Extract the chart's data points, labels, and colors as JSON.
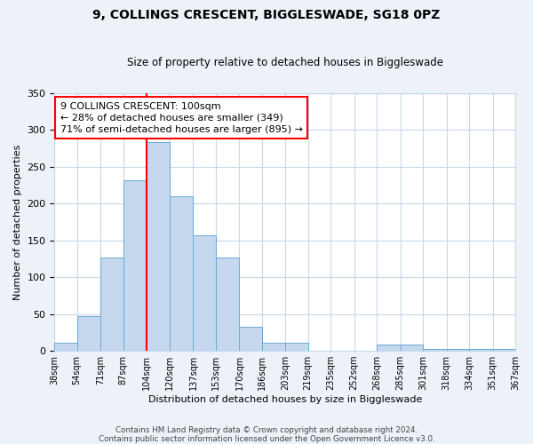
{
  "title": "9, COLLINGS CRESCENT, BIGGLESWADE, SG18 0PZ",
  "subtitle": "Size of property relative to detached houses in Biggleswade",
  "xlabel": "Distribution of detached houses by size in Biggleswade",
  "ylabel": "Number of detached properties",
  "bar_edges": [
    38,
    54,
    71,
    87,
    104,
    120,
    137,
    153,
    170,
    186,
    203,
    219,
    235,
    252,
    268,
    285,
    301,
    318,
    334,
    351,
    367
  ],
  "bar_heights": [
    11,
    47,
    126,
    231,
    283,
    210,
    157,
    126,
    33,
    11,
    11,
    0,
    0,
    0,
    8,
    8,
    3,
    3,
    3,
    3
  ],
  "bar_color": "#c5d8ee",
  "bar_edge_color": "#6aaad4",
  "tick_labels": [
    "38sqm",
    "54sqm",
    "71sqm",
    "87sqm",
    "104sqm",
    "120sqm",
    "137sqm",
    "153sqm",
    "170sqm",
    "186sqm",
    "203sqm",
    "219sqm",
    "235sqm",
    "252sqm",
    "268sqm",
    "285sqm",
    "301sqm",
    "318sqm",
    "334sqm",
    "351sqm",
    "367sqm"
  ],
  "vline_x": 104,
  "vline_color": "red",
  "ylim": [
    0,
    350
  ],
  "yticks": [
    0,
    50,
    100,
    150,
    200,
    250,
    300,
    350
  ],
  "annotation_title": "9 COLLINGS CRESCENT: 100sqm",
  "annotation_line1": "← 28% of detached houses are smaller (349)",
  "annotation_line2": "71% of semi-detached houses are larger (895) →",
  "footer1": "Contains HM Land Registry data © Crown copyright and database right 2024.",
  "footer2": "Contains public sector information licensed under the Open Government Licence v3.0.",
  "bg_color": "#edf2f9",
  "plot_bg_color": "#ffffff",
  "grid_color": "#c8d8ea"
}
